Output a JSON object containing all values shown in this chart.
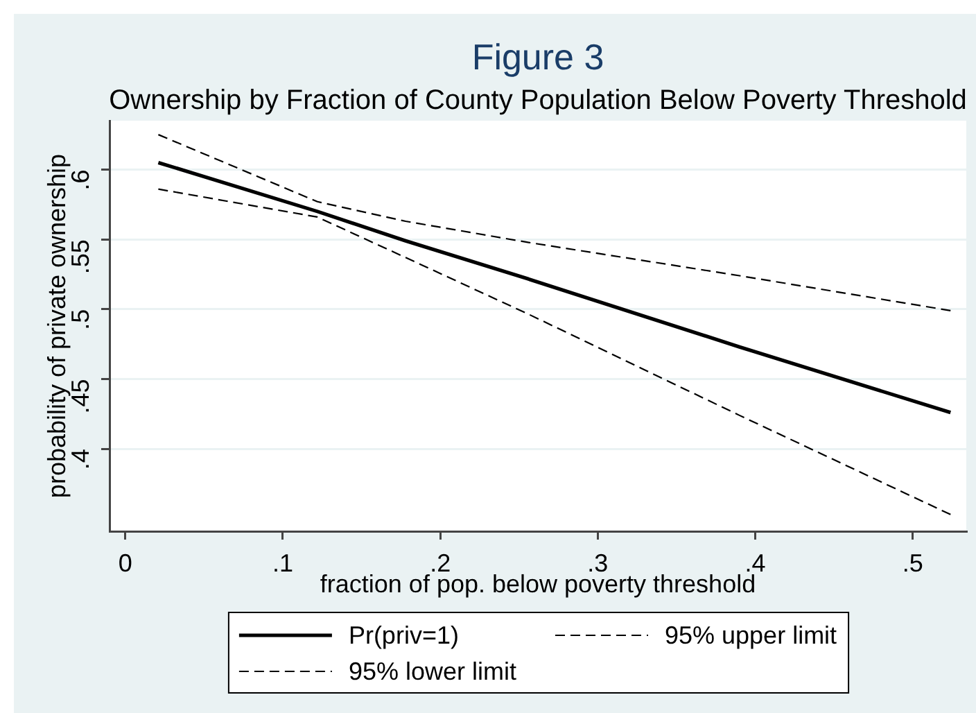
{
  "chart_data": {
    "type": "line",
    "title": "Figure 3",
    "subtitle": "Ownership by Fraction of County Population Below Poverty Threshold",
    "xlabel": "fraction of pop. below poverty threshold",
    "ylabel": "probability of private ownership",
    "x": [
      0.021,
      0.122,
      0.178,
      0.255,
      0.39,
      0.524
    ],
    "series": [
      {
        "name": "Pr(priv=1)",
        "color": "#000000",
        "line_style": "solid",
        "values": [
          0.605,
          0.57,
          0.549,
          0.522,
          0.473,
          0.426
        ]
      },
      {
        "name": "95% upper limit",
        "color": "#000000",
        "line_style": "dashed",
        "values": [
          0.625,
          0.577,
          0.563,
          0.548,
          0.524,
          0.499
        ]
      },
      {
        "name": "95% lower limit",
        "color": "#000000",
        "line_style": "dashed",
        "values": [
          0.586,
          0.566,
          0.537,
          0.497,
          0.424,
          0.353
        ]
      }
    ],
    "xlim": [
      -0.01,
      0.534
    ],
    "ylim": [
      0.341,
      0.635
    ],
    "xticks": [
      0,
      {
        "value": 0.1,
        "label": ".1"
      },
      {
        "value": 0.2,
        "label": ".2"
      },
      {
        "value": 0.3,
        "label": ".3"
      },
      {
        "value": 0.4,
        "label": ".4"
      },
      {
        "value": 0.5,
        "label": ".5"
      }
    ],
    "yticks": [
      {
        "value": 0.4,
        "label": ".4"
      },
      {
        "value": 0.45,
        "label": ".45"
      },
      {
        "value": 0.5,
        "label": ".5"
      },
      {
        "value": 0.55,
        "label": ".55"
      },
      {
        "value": 0.6,
        "label": ".6"
      }
    ],
    "grid": "y",
    "legend": "bottom",
    "marker": "none"
  }
}
